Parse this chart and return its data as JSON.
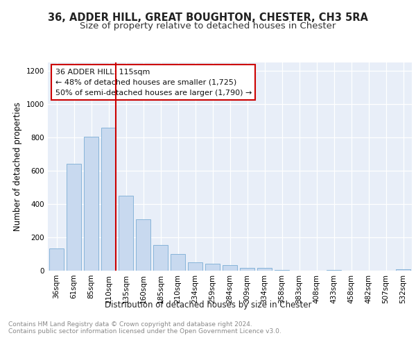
{
  "title1": "36, ADDER HILL, GREAT BOUGHTON, CHESTER, CH3 5RA",
  "title2": "Size of property relative to detached houses in Chester",
  "xlabel": "Distribution of detached houses by size in Chester",
  "ylabel": "Number of detached properties",
  "categories": [
    "36sqm",
    "61sqm",
    "85sqm",
    "110sqm",
    "135sqm",
    "160sqm",
    "185sqm",
    "210sqm",
    "234sqm",
    "259sqm",
    "284sqm",
    "309sqm",
    "334sqm",
    "358sqm",
    "383sqm",
    "408sqm",
    "433sqm",
    "458sqm",
    "482sqm",
    "507sqm",
    "532sqm"
  ],
  "values": [
    135,
    640,
    805,
    860,
    450,
    308,
    155,
    98,
    50,
    42,
    32,
    18,
    18,
    5,
    0,
    0,
    5,
    0,
    0,
    0,
    10
  ],
  "bar_color": "#c8d9ef",
  "bar_edge_color": "#7aadd4",
  "vline_index": 3,
  "vline_color": "#cc0000",
  "annotation_line1": "36 ADDER HILL: 115sqm",
  "annotation_line2": "← 48% of detached houses are smaller (1,725)",
  "annotation_line3": "50% of semi-detached houses are larger (1,790) →",
  "annotation_box_color": "#ffffff",
  "annotation_box_edge_color": "#cc0000",
  "ylim": [
    0,
    1250
  ],
  "yticks": [
    0,
    200,
    400,
    600,
    800,
    1000,
    1200
  ],
  "plot_bg_color": "#e8eef8",
  "footer_text": "Contains HM Land Registry data © Crown copyright and database right 2024.\nContains public sector information licensed under the Open Government Licence v3.0.",
  "title1_fontsize": 10.5,
  "title2_fontsize": 9.5,
  "axis_label_fontsize": 8.5,
  "tick_fontsize": 7.5,
  "annotation_fontsize": 8,
  "footer_fontsize": 6.5
}
